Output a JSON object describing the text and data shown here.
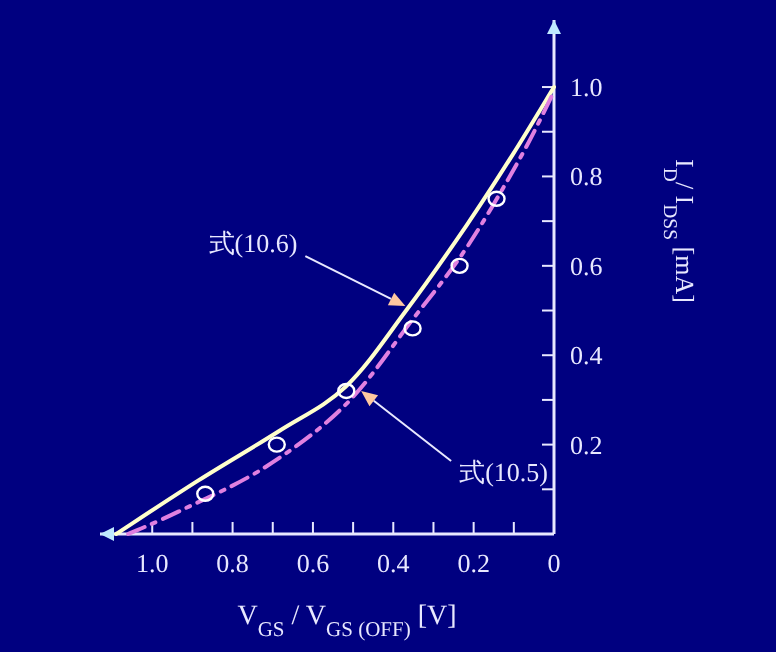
{
  "chart_data": {
    "type": "line",
    "xlabel": "V$_{GS}$ / V$_{GS (OFF)}$ [V]",
    "ylabel": "I$_{D}$/ I$_{DSS}$ [mA]",
    "xlim": [
      1.13,
      0
    ],
    "ylim": [
      0,
      1.15
    ],
    "xticks": [
      {
        "value": 1.0,
        "label": "1.0"
      },
      {
        "value": 0.9,
        "label": null
      },
      0.8,
      {
        "value": 0.7,
        "label": null
      },
      0.6,
      {
        "value": 0.5,
        "label": null
      },
      0.4,
      {
        "value": 0.3,
        "label": null
      },
      0.2,
      {
        "value": 0.1,
        "label": null
      },
      0
    ],
    "yticks": [
      {
        "value": 0.1,
        "label": null
      },
      0.2,
      {
        "value": 0.3,
        "label": null
      },
      0.4,
      {
        "value": 0.5,
        "label": null
      },
      0.6,
      {
        "value": 0.7,
        "label": null
      },
      0.8,
      {
        "value": 0.9,
        "label": null
      },
      {
        "value": 1.0,
        "label": "1.0"
      }
    ],
    "grid": false,
    "series": [
      {
        "color": "#ffffcc",
        "line_style": "solid",
        "marker": "none",
        "x": [
          1.09,
          0.885,
          0.685,
          0.518,
          0.368,
          0.218,
          0.102,
          0
        ],
        "values": [
          0,
          0.12,
          0.23,
          0.33,
          0.5,
          0.69,
          0.85,
          1.0
        ]
      },
      {
        "color": "#e080e0",
        "line_style": "dashed",
        "marker": "none",
        "x": [
          1.06,
          0.935,
          0.718,
          0.518,
          0.352,
          0.218,
          0.085,
          0
        ],
        "values": [
          0,
          0.05,
          0.15,
          0.29,
          0.48,
          0.64,
          0.84,
          0.99
        ]
      },
      {
        "type": "scatter",
        "color": "#ffffff",
        "marker": "circle",
        "x": [
          0.868,
          0.69,
          0.517,
          0.352,
          0.235,
          0.143
        ],
        "values": [
          0.09,
          0.2,
          0.32,
          0.46,
          0.6,
          0.75
        ]
      }
    ],
    "annotations": [
      {
        "text": "式(10.6)",
        "x": 0.37,
        "y": 0.51
      },
      {
        "text": "式(10.5)",
        "x": 0.48,
        "y": 0.32
      }
    ]
  }
}
